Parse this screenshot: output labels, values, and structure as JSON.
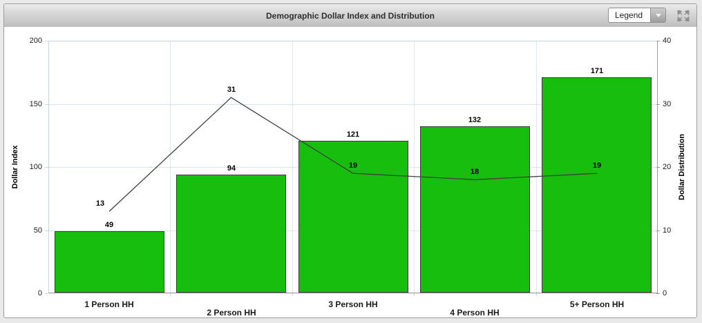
{
  "header": {
    "title": "Demographic Dollar Index and Distribution",
    "legend_dropdown": {
      "label": "Legend"
    }
  },
  "chart_data": {
    "type": "bar",
    "title": "Demographic Dollar Index and Distribution",
    "categories": [
      "1 Person HH",
      "2 Person HH",
      "3 Person HH",
      "4 Person HH",
      "5+ Person HH"
    ],
    "series": [
      {
        "name": "Dollar Index",
        "type": "bar",
        "axis": "left",
        "color": "#17be0d",
        "values": [
          49,
          94,
          121,
          132,
          171
        ]
      },
      {
        "name": "Dollar Distribution",
        "type": "line",
        "axis": "right",
        "color": "#3f3f3f",
        "values": [
          13,
          31,
          19,
          18,
          19
        ]
      }
    ],
    "left_axis": {
      "label": "Dollar Index",
      "min": 0,
      "max": 200,
      "ticks": [
        0,
        50,
        100,
        150,
        200
      ]
    },
    "right_axis": {
      "label": "Dollar Distribution",
      "min": 0,
      "max": 40,
      "ticks": [
        0,
        10,
        20,
        30,
        40
      ]
    },
    "grid": true,
    "legend_position": "dropdown",
    "bar_border_color": "#3a3a3a",
    "grid_color": "#d9e5f3"
  }
}
